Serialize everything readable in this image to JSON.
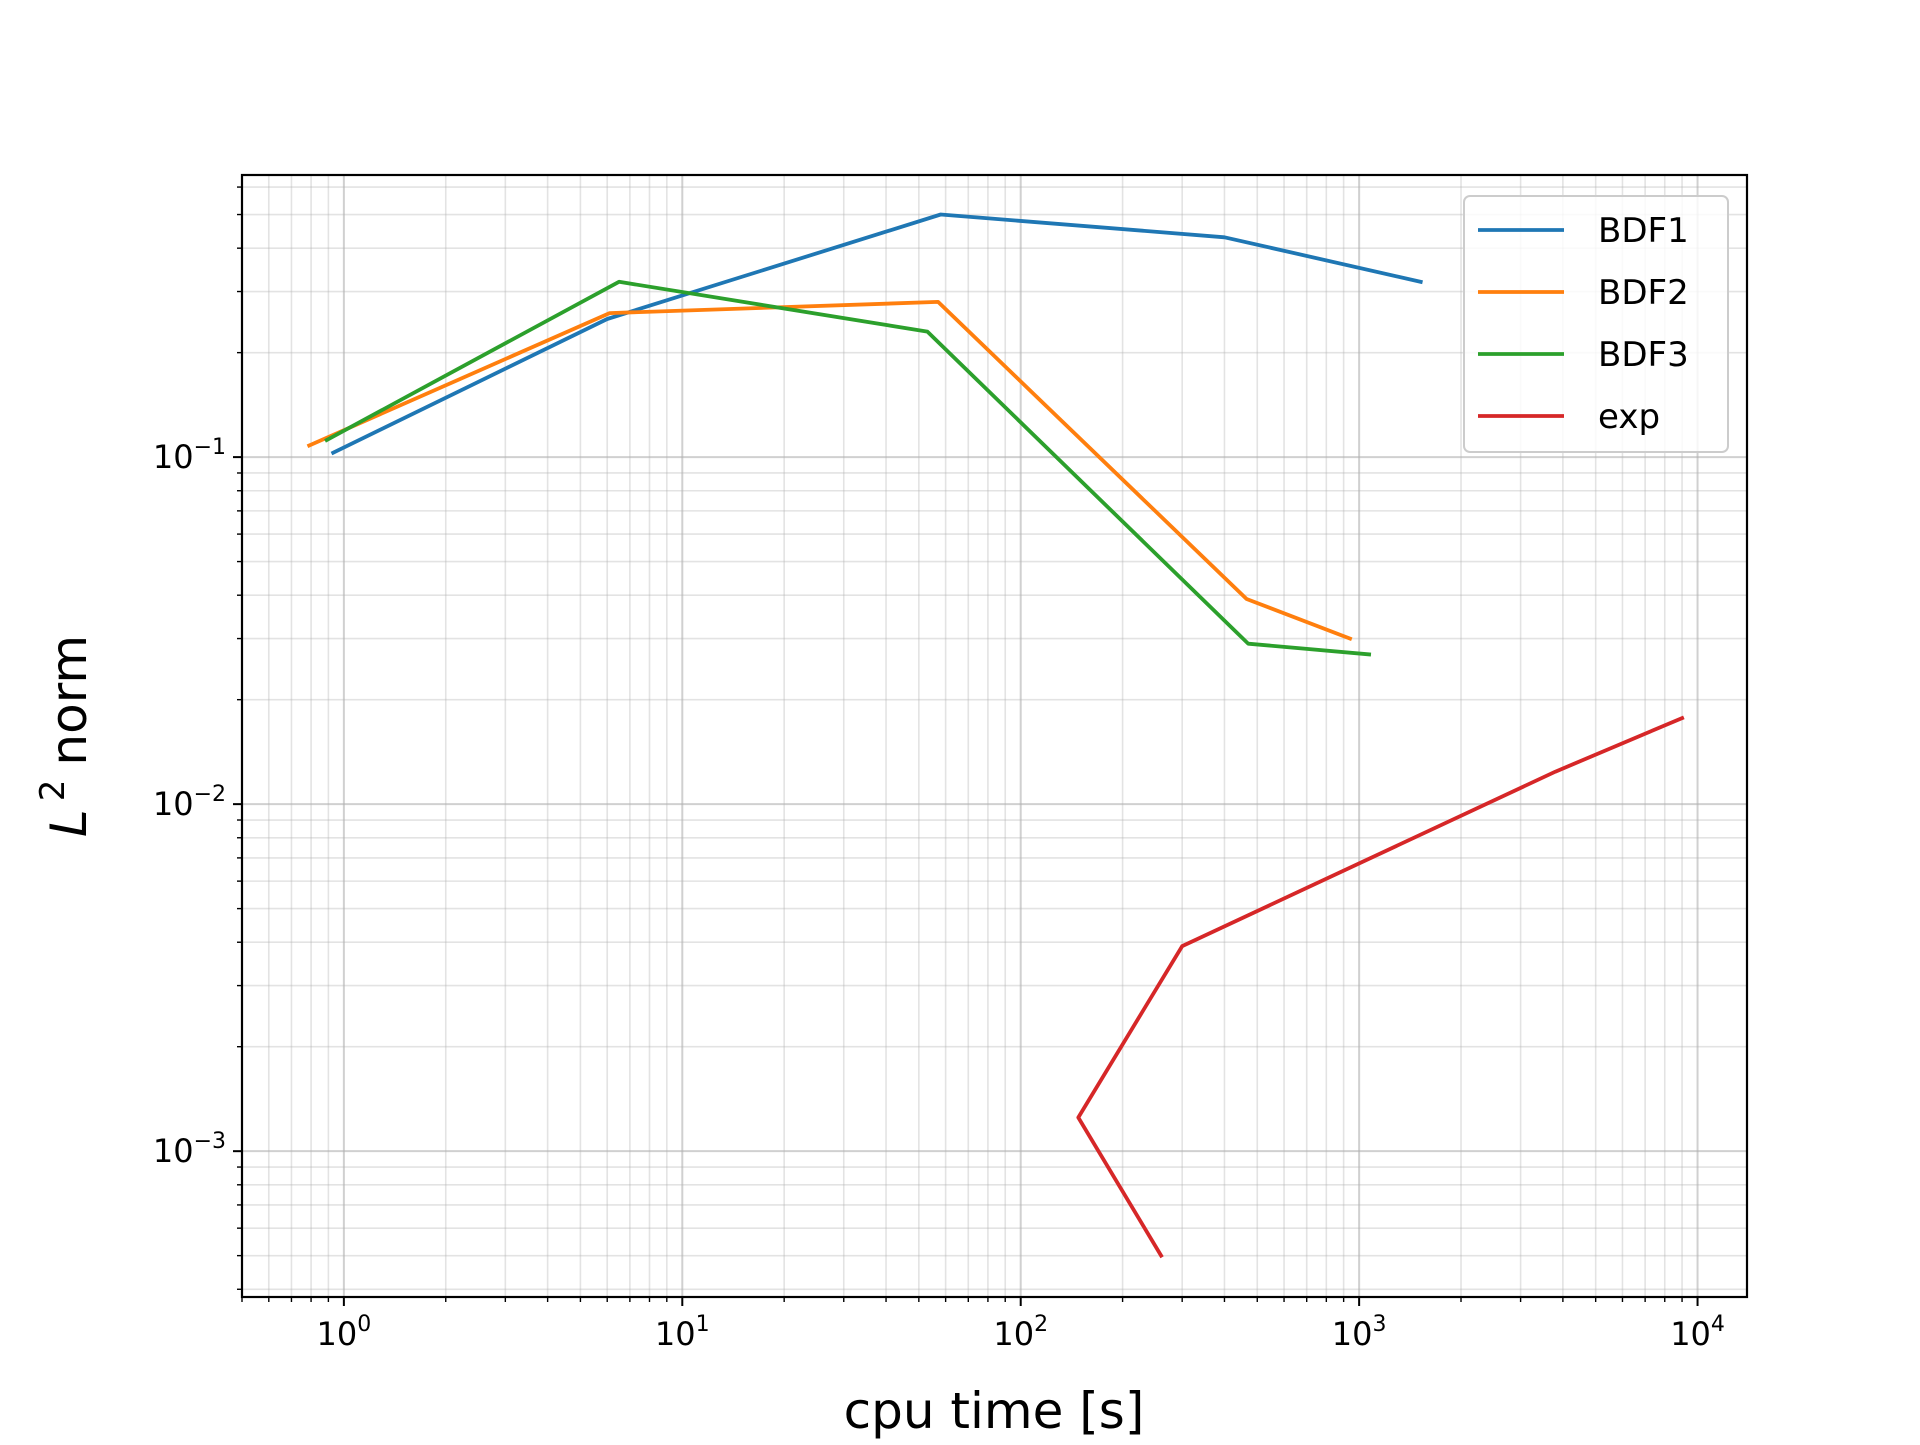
{
  "chart_data": {
    "type": "line",
    "xscale": "log",
    "yscale": "log",
    "xlabel": "cpu time [s]",
    "ylabel": "norm",
    "ylabel_prefix": "L",
    "ylabel_sup": "2",
    "xlim": [
      0.5,
      14000
    ],
    "ylim": [
      0.00038,
      0.65
    ],
    "grid": true,
    "legend_position": "top-right",
    "x_ticks": [
      {
        "value": 1,
        "base": "10",
        "exp": "0"
      },
      {
        "value": 10,
        "base": "10",
        "exp": "1"
      },
      {
        "value": 100,
        "base": "10",
        "exp": "2"
      },
      {
        "value": 1000,
        "base": "10",
        "exp": "3"
      },
      {
        "value": 10000,
        "base": "10",
        "exp": "4"
      }
    ],
    "y_ticks": [
      {
        "value": 0.1,
        "base": "10",
        "exp": "−1"
      },
      {
        "value": 0.01,
        "base": "10",
        "exp": "−2"
      },
      {
        "value": 0.001,
        "base": "10",
        "exp": "−3"
      }
    ],
    "series": [
      {
        "name": "BDF1",
        "color": "#1f77b4",
        "points": [
          [
            0.93,
            0.103
          ],
          [
            6.0,
            0.25
          ],
          [
            58,
            0.5
          ],
          [
            400,
            0.43
          ],
          [
            1520,
            0.32
          ]
        ]
      },
      {
        "name": "BDF2",
        "color": "#ff7f0e",
        "points": [
          [
            0.79,
            0.108
          ],
          [
            6.1,
            0.26
          ],
          [
            57,
            0.28
          ],
          [
            465,
            0.039
          ],
          [
            940,
            0.03
          ]
        ]
      },
      {
        "name": "BDF3",
        "color": "#2ca02c",
        "points": [
          [
            0.89,
            0.112
          ],
          [
            6.5,
            0.32
          ],
          [
            53,
            0.23
          ],
          [
            470,
            0.029
          ],
          [
            1070,
            0.027
          ]
        ]
      },
      {
        "name": "exp",
        "color": "#d62728",
        "points": [
          [
            260,
            0.0005
          ],
          [
            148,
            0.00125
          ],
          [
            300,
            0.0039
          ],
          [
            3800,
            0.0124
          ],
          [
            9000,
            0.0177
          ]
        ]
      }
    ]
  }
}
